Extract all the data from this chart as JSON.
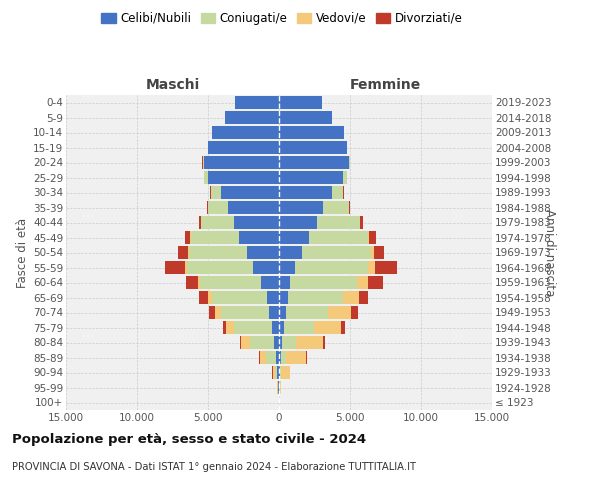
{
  "age_groups": [
    "100+",
    "95-99",
    "90-94",
    "85-89",
    "80-84",
    "75-79",
    "70-74",
    "65-69",
    "60-64",
    "55-59",
    "50-54",
    "45-49",
    "40-44",
    "35-39",
    "30-34",
    "25-29",
    "20-24",
    "15-19",
    "10-14",
    "5-9",
    "0-4"
  ],
  "birth_years": [
    "≤ 1923",
    "1924-1928",
    "1929-1933",
    "1934-1938",
    "1939-1943",
    "1944-1948",
    "1949-1953",
    "1954-1958",
    "1959-1963",
    "1964-1968",
    "1969-1973",
    "1974-1978",
    "1979-1983",
    "1984-1988",
    "1989-1993",
    "1994-1998",
    "1999-2003",
    "2004-2008",
    "2009-2013",
    "2014-2018",
    "2019-2023"
  ],
  "colors": {
    "celibi": "#4472C4",
    "coniugati": "#c5d9a0",
    "vedovi": "#f5c97a",
    "divorziati": "#c0392b"
  },
  "maschi_celibi": [
    20,
    60,
    120,
    200,
    320,
    500,
    680,
    850,
    1250,
    1800,
    2250,
    2800,
    3200,
    3600,
    4100,
    5000,
    5300,
    5000,
    4700,
    3800,
    3100
  ],
  "maschi_coniugati": [
    5,
    40,
    150,
    700,
    1700,
    2700,
    3400,
    3900,
    4300,
    4700,
    4100,
    3400,
    2300,
    1400,
    700,
    250,
    80,
    25,
    8,
    3,
    3
  ],
  "maschi_vedovi": [
    3,
    20,
    180,
    450,
    650,
    550,
    450,
    280,
    170,
    120,
    80,
    40,
    15,
    8,
    3,
    3,
    3,
    3,
    3,
    3,
    3
  ],
  "maschi_divorziati": [
    1,
    8,
    15,
    40,
    90,
    200,
    380,
    580,
    850,
    1380,
    680,
    380,
    130,
    80,
    50,
    25,
    8,
    3,
    3,
    3,
    3
  ],
  "femmine_celibi": [
    12,
    35,
    70,
    120,
    200,
    350,
    480,
    620,
    800,
    1100,
    1600,
    2100,
    2700,
    3100,
    3700,
    4500,
    4900,
    4800,
    4600,
    3700,
    3000
  ],
  "femmine_coniugati": [
    3,
    25,
    80,
    400,
    1000,
    2100,
    3000,
    3900,
    4700,
    5200,
    4900,
    4200,
    3000,
    1800,
    800,
    300,
    80,
    15,
    5,
    3,
    3
  ],
  "femmine_vedovi": [
    15,
    100,
    600,
    1400,
    1900,
    1900,
    1600,
    1100,
    750,
    450,
    170,
    70,
    25,
    12,
    8,
    4,
    3,
    3,
    3,
    3,
    3
  ],
  "femmine_divorziati": [
    1,
    8,
    15,
    40,
    130,
    270,
    460,
    650,
    1050,
    1550,
    750,
    450,
    170,
    80,
    40,
    15,
    8,
    3,
    3,
    3,
    3
  ],
  "title": "Popolazione per età, sesso e stato civile - 2024",
  "subtitle": "PROVINCIA DI SAVONA - Dati ISTAT 1° gennaio 2024 - Elaborazione TUTTITALIA.IT",
  "xlabel_left": "Maschi",
  "xlabel_right": "Femmine",
  "ylabel_left": "Fasce di età",
  "ylabel_right": "Anni di nascita",
  "xlim": 15000,
  "background_color": "#ffffff"
}
